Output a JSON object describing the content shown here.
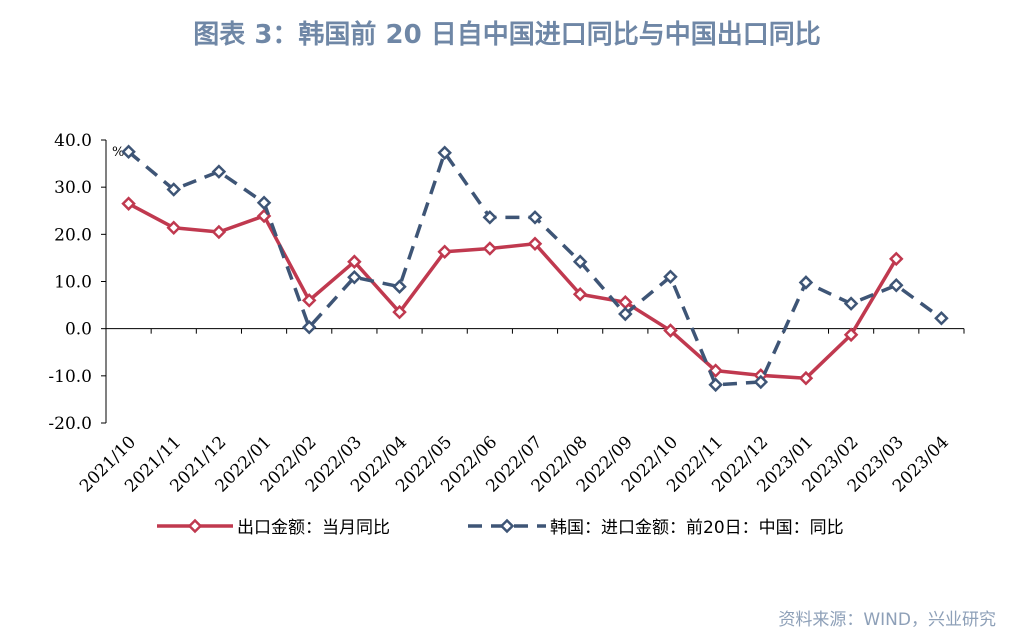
{
  "title": "图表 3：韩国前 20 日自中国进口同比与中国出口同比",
  "source": "资料来源：WIND，兴业研究",
  "chart_data": {
    "type": "line",
    "categories": [
      "2021/10",
      "2021/11",
      "2021/12",
      "2022/01",
      "2022/02",
      "2022/03",
      "2022/04",
      "2022/05",
      "2022/06",
      "2022/07",
      "2022/08",
      "2022/09",
      "2022/10",
      "2022/11",
      "2022/12",
      "2023/01",
      "2023/02",
      "2023/03",
      "2023/04"
    ],
    "unit_label": "%",
    "ylim": [
      -20,
      40
    ],
    "yticks": [
      -20,
      -10,
      0,
      10,
      20,
      30,
      40
    ],
    "ytick_labels": [
      "-20.0",
      "-10.0",
      "0.0",
      "10.0",
      "20.0",
      "30.0",
      "40.0"
    ],
    "legend_position": "bottom",
    "series": [
      {
        "name": "出口金额：当月同比",
        "color": "#c0394f",
        "style": "solid",
        "values": [
          26.5,
          21.4,
          20.5,
          23.9,
          6.0,
          14.2,
          3.5,
          16.3,
          17.0,
          18.0,
          7.3,
          5.6,
          -0.4,
          -8.9,
          -9.9,
          -10.5,
          -1.3,
          14.8,
          null
        ]
      },
      {
        "name": "韩国：进口金额：前20日：中国：同比",
        "color": "#3e5576",
        "style": "dashed",
        "values": [
          37.5,
          29.5,
          33.3,
          26.7,
          0.3,
          10.9,
          8.9,
          37.3,
          23.6,
          23.6,
          14.2,
          3.1,
          11.0,
          -11.9,
          -11.3,
          9.8,
          5.3,
          9.2,
          2.2
        ]
      }
    ]
  }
}
